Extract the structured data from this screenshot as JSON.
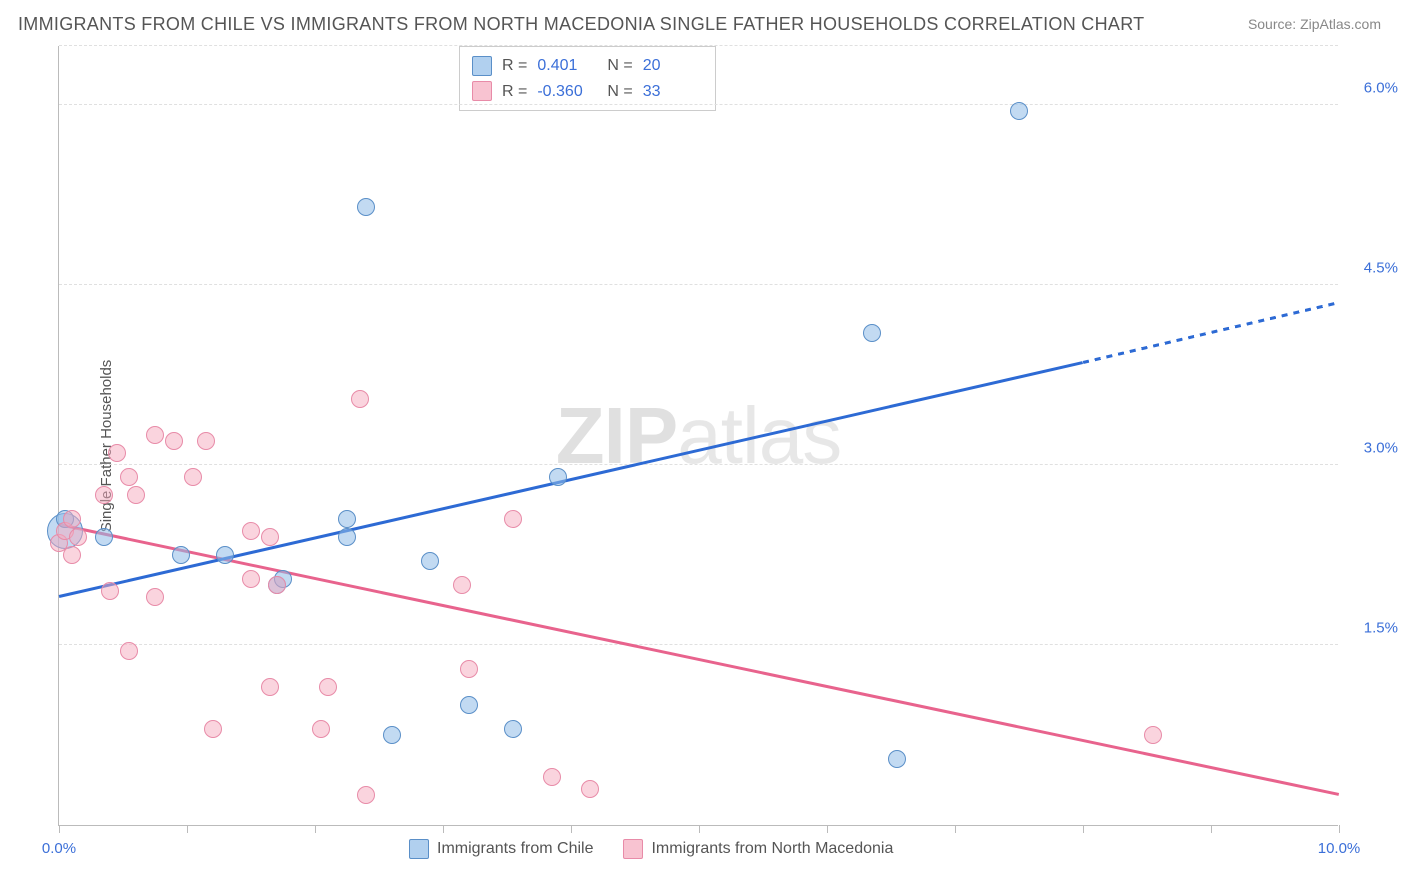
{
  "title": "IMMIGRANTS FROM CHILE VS IMMIGRANTS FROM NORTH MACEDONIA SINGLE FATHER HOUSEHOLDS CORRELATION CHART",
  "source": "Source: ZipAtlas.com",
  "ylabel": "Single Father Households",
  "watermark_bold": "ZIP",
  "watermark_light": "atlas",
  "chart": {
    "type": "scatter",
    "xlim": [
      0,
      10
    ],
    "ylim": [
      0,
      6.5
    ],
    "xticks": [
      0,
      1,
      2,
      3,
      4,
      5,
      6,
      7,
      8,
      9,
      10
    ],
    "xtick_labels": {
      "0": "0.0%",
      "10": "10.0%"
    },
    "ytick_lines": [
      1.5,
      3.0,
      4.5,
      6.0
    ],
    "ytick_labels": [
      "1.5%",
      "3.0%",
      "4.5%",
      "6.0%"
    ],
    "background_color": "#ffffff",
    "grid_color": "#e0e0e0",
    "axis_color": "#bbbbbb",
    "label_color": "#3b6fd8",
    "point_radius": 9,
    "series": [
      {
        "name": "Immigrants from Chile",
        "color_fill": "rgba(144,188,232,0.55)",
        "color_stroke": "#5a8fc8",
        "trend_color": "#2d6ad4",
        "R": "0.401",
        "N": "20",
        "trend": {
          "x0": 0,
          "y0": 1.9,
          "x1": 8.0,
          "y1": 3.85,
          "dash_to_x": 10.0,
          "dash_to_y": 4.35
        },
        "points": [
          [
            0.05,
            2.45,
            18
          ],
          [
            0.05,
            2.55
          ],
          [
            0.35,
            2.4
          ],
          [
            0.95,
            2.25
          ],
          [
            1.3,
            2.25
          ],
          [
            1.7,
            2.0
          ],
          [
            1.75,
            2.05
          ],
          [
            2.25,
            2.55
          ],
          [
            2.25,
            2.4
          ],
          [
            2.4,
            5.15
          ],
          [
            2.6,
            0.75
          ],
          [
            2.9,
            2.2
          ],
          [
            3.2,
            1.0
          ],
          [
            3.55,
            0.8
          ],
          [
            3.9,
            2.9
          ],
          [
            6.35,
            4.1
          ],
          [
            6.55,
            0.55
          ],
          [
            7.5,
            5.95
          ]
        ]
      },
      {
        "name": "Immigrants from North Macedonia",
        "color_fill": "rgba(245,170,190,0.50)",
        "color_stroke": "#e88ba8",
        "trend_color": "#e8638d",
        "R": "-0.360",
        "N": "33",
        "trend": {
          "x0": 0,
          "y0": 2.5,
          "x1": 10.0,
          "y1": 0.25
        },
        "points": [
          [
            0.0,
            2.35
          ],
          [
            0.05,
            2.45
          ],
          [
            0.1,
            2.25
          ],
          [
            0.1,
            2.55
          ],
          [
            0.15,
            2.4
          ],
          [
            0.35,
            2.75
          ],
          [
            0.4,
            1.95
          ],
          [
            0.45,
            3.1
          ],
          [
            0.55,
            2.9
          ],
          [
            0.55,
            1.45
          ],
          [
            0.6,
            2.75
          ],
          [
            0.75,
            3.25
          ],
          [
            0.75,
            1.9
          ],
          [
            0.9,
            3.2
          ],
          [
            1.05,
            2.9
          ],
          [
            1.15,
            3.2
          ],
          [
            1.2,
            0.8
          ],
          [
            1.5,
            2.05
          ],
          [
            1.5,
            2.45
          ],
          [
            1.65,
            2.4
          ],
          [
            1.7,
            2.0
          ],
          [
            1.65,
            1.15
          ],
          [
            2.05,
            0.8
          ],
          [
            2.1,
            1.15
          ],
          [
            2.35,
            3.55
          ],
          [
            2.4,
            0.25
          ],
          [
            3.15,
            2.0
          ],
          [
            3.2,
            1.3
          ],
          [
            3.55,
            2.55
          ],
          [
            3.85,
            0.4
          ],
          [
            4.15,
            0.3
          ],
          [
            8.55,
            0.75
          ]
        ]
      }
    ]
  },
  "legend_top": {
    "rows": [
      {
        "swatch": "blue",
        "R_label": "R =",
        "R": "0.401",
        "N_label": "N =",
        "N": "20"
      },
      {
        "swatch": "pink",
        "R_label": "R =",
        "R": "-0.360",
        "N_label": "N =",
        "N": "33"
      }
    ]
  },
  "legend_bottom": {
    "items": [
      {
        "swatch": "blue",
        "label": "Immigrants from Chile"
      },
      {
        "swatch": "pink",
        "label": "Immigrants from North Macedonia"
      }
    ]
  }
}
